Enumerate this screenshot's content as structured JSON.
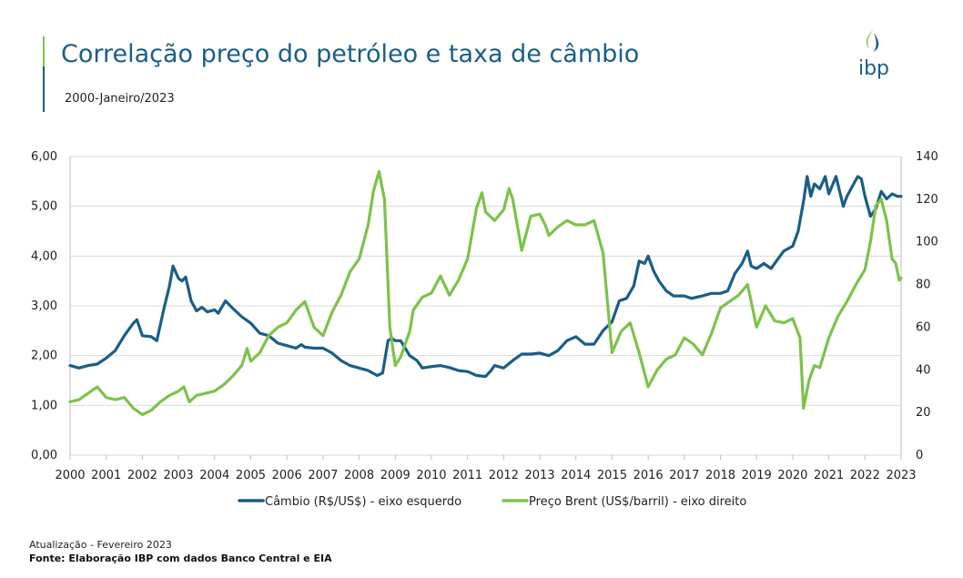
{
  "header": {
    "title": "Correlação preço do petróleo e taxa de câmbio",
    "subtitle": "2000-Janeiro/2023",
    "logo_text": "ibp"
  },
  "footer": {
    "update": "Atualização - Fevereiro 2023",
    "source": "Fonte: Elaboração IBP com dados Banco Central e EIA"
  },
  "colors": {
    "cambio": "#1a5e86",
    "brent": "#7dc24b",
    "title": "#1a5e86"
  },
  "chart_data": {
    "type": "line",
    "title": "Correlação preço do petróleo e taxa de câmbio",
    "subtitle": "2000-Janeiro/2023",
    "x_ticks": [
      "2000",
      "2001",
      "2002",
      "2003",
      "2004",
      "2005",
      "2006",
      "2007",
      "2008",
      "2009",
      "2010",
      "2011",
      "2012",
      "2013",
      "2014",
      "2015",
      "2016",
      "2017",
      "2018",
      "2019",
      "2020",
      "2021",
      "2022",
      "2023"
    ],
    "xlim": [
      2000,
      2023
    ],
    "y_left": {
      "lim": [
        0,
        6
      ],
      "ticks": [
        "0,00",
        "1,00",
        "2,00",
        "3,00",
        "4,00",
        "5,00",
        "6,00"
      ]
    },
    "y_right": {
      "lim": [
        0,
        140
      ],
      "ticks": [
        "0",
        "20",
        "40",
        "60",
        "80",
        "100",
        "120",
        "140"
      ]
    },
    "grid": "horizontal",
    "legend_position": "bottom",
    "series": [
      {
        "name": "Câmbio (R$/US$) - eixo esquerdo",
        "axis": "left",
        "points": [
          [
            2000.0,
            1.8
          ],
          [
            2000.25,
            1.75
          ],
          [
            2000.5,
            1.8
          ],
          [
            2000.75,
            1.83
          ],
          [
            2001.0,
            1.95
          ],
          [
            2001.25,
            2.1
          ],
          [
            2001.5,
            2.4
          ],
          [
            2001.75,
            2.65
          ],
          [
            2001.85,
            2.72
          ],
          [
            2002.0,
            2.4
          ],
          [
            2002.25,
            2.38
          ],
          [
            2002.4,
            2.3
          ],
          [
            2002.6,
            2.95
          ],
          [
            2002.75,
            3.4
          ],
          [
            2002.85,
            3.8
          ],
          [
            2003.0,
            3.55
          ],
          [
            2003.1,
            3.5
          ],
          [
            2003.2,
            3.58
          ],
          [
            2003.35,
            3.1
          ],
          [
            2003.5,
            2.9
          ],
          [
            2003.65,
            2.97
          ],
          [
            2003.8,
            2.88
          ],
          [
            2004.0,
            2.92
          ],
          [
            2004.1,
            2.85
          ],
          [
            2004.3,
            3.1
          ],
          [
            2004.5,
            2.95
          ],
          [
            2004.75,
            2.78
          ],
          [
            2005.0,
            2.65
          ],
          [
            2005.25,
            2.45
          ],
          [
            2005.5,
            2.4
          ],
          [
            2005.75,
            2.25
          ],
          [
            2006.0,
            2.2
          ],
          [
            2006.25,
            2.15
          ],
          [
            2006.4,
            2.22
          ],
          [
            2006.5,
            2.17
          ],
          [
            2006.75,
            2.15
          ],
          [
            2007.0,
            2.15
          ],
          [
            2007.25,
            2.05
          ],
          [
            2007.5,
            1.9
          ],
          [
            2007.75,
            1.8
          ],
          [
            2008.0,
            1.75
          ],
          [
            2008.25,
            1.7
          ],
          [
            2008.5,
            1.6
          ],
          [
            2008.65,
            1.65
          ],
          [
            2008.8,
            2.3
          ],
          [
            2008.9,
            2.35
          ],
          [
            2009.0,
            2.3
          ],
          [
            2009.15,
            2.3
          ],
          [
            2009.4,
            2.0
          ],
          [
            2009.6,
            1.9
          ],
          [
            2009.75,
            1.75
          ],
          [
            2010.0,
            1.78
          ],
          [
            2010.25,
            1.8
          ],
          [
            2010.5,
            1.76
          ],
          [
            2010.75,
            1.7
          ],
          [
            2011.0,
            1.68
          ],
          [
            2011.25,
            1.6
          ],
          [
            2011.5,
            1.58
          ],
          [
            2011.65,
            1.7
          ],
          [
            2011.75,
            1.8
          ],
          [
            2012.0,
            1.75
          ],
          [
            2012.25,
            1.9
          ],
          [
            2012.5,
            2.03
          ],
          [
            2012.75,
            2.03
          ],
          [
            2013.0,
            2.05
          ],
          [
            2013.25,
            2.0
          ],
          [
            2013.5,
            2.1
          ],
          [
            2013.75,
            2.3
          ],
          [
            2014.0,
            2.38
          ],
          [
            2014.25,
            2.23
          ],
          [
            2014.5,
            2.23
          ],
          [
            2014.75,
            2.5
          ],
          [
            2015.0,
            2.68
          ],
          [
            2015.2,
            3.1
          ],
          [
            2015.4,
            3.15
          ],
          [
            2015.6,
            3.4
          ],
          [
            2015.75,
            3.9
          ],
          [
            2015.9,
            3.85
          ],
          [
            2016.0,
            4.0
          ],
          [
            2016.15,
            3.7
          ],
          [
            2016.3,
            3.5
          ],
          [
            2016.5,
            3.3
          ],
          [
            2016.7,
            3.2
          ],
          [
            2017.0,
            3.2
          ],
          [
            2017.2,
            3.15
          ],
          [
            2017.5,
            3.2
          ],
          [
            2017.75,
            3.25
          ],
          [
            2018.0,
            3.25
          ],
          [
            2018.2,
            3.3
          ],
          [
            2018.4,
            3.65
          ],
          [
            2018.6,
            3.85
          ],
          [
            2018.75,
            4.1
          ],
          [
            2018.85,
            3.8
          ],
          [
            2019.0,
            3.75
          ],
          [
            2019.2,
            3.85
          ],
          [
            2019.4,
            3.75
          ],
          [
            2019.6,
            3.95
          ],
          [
            2019.75,
            4.1
          ],
          [
            2020.0,
            4.2
          ],
          [
            2020.15,
            4.5
          ],
          [
            2020.3,
            5.1
          ],
          [
            2020.4,
            5.6
          ],
          [
            2020.5,
            5.2
          ],
          [
            2020.6,
            5.45
          ],
          [
            2020.75,
            5.35
          ],
          [
            2020.9,
            5.6
          ],
          [
            2021.0,
            5.25
          ],
          [
            2021.2,
            5.6
          ],
          [
            2021.4,
            5.0
          ],
          [
            2021.5,
            5.2
          ],
          [
            2021.65,
            5.4
          ],
          [
            2021.8,
            5.6
          ],
          [
            2021.9,
            5.55
          ],
          [
            2022.0,
            5.2
          ],
          [
            2022.15,
            4.8
          ],
          [
            2022.3,
            4.95
          ],
          [
            2022.45,
            5.3
          ],
          [
            2022.6,
            5.15
          ],
          [
            2022.75,
            5.25
          ],
          [
            2022.9,
            5.2
          ],
          [
            2023.0,
            5.2
          ]
        ]
      },
      {
        "name": "Preço Brent (US$/barril) - eixo direito",
        "axis": "right",
        "points": [
          [
            2000.0,
            25
          ],
          [
            2000.25,
            26
          ],
          [
            2000.5,
            29
          ],
          [
            2000.75,
            32
          ],
          [
            2001.0,
            27
          ],
          [
            2001.25,
            26
          ],
          [
            2001.5,
            27
          ],
          [
            2001.75,
            22
          ],
          [
            2002.0,
            19
          ],
          [
            2002.25,
            21
          ],
          [
            2002.5,
            25
          ],
          [
            2002.75,
            28
          ],
          [
            2003.0,
            30
          ],
          [
            2003.15,
            32
          ],
          [
            2003.3,
            25
          ],
          [
            2003.5,
            28
          ],
          [
            2003.75,
            29
          ],
          [
            2004.0,
            30
          ],
          [
            2004.25,
            33
          ],
          [
            2004.5,
            37
          ],
          [
            2004.75,
            42
          ],
          [
            2004.9,
            50
          ],
          [
            2005.0,
            44
          ],
          [
            2005.25,
            48
          ],
          [
            2005.5,
            56
          ],
          [
            2005.75,
            60
          ],
          [
            2006.0,
            62
          ],
          [
            2006.25,
            68
          ],
          [
            2006.5,
            72
          ],
          [
            2006.75,
            60
          ],
          [
            2007.0,
            56
          ],
          [
            2007.25,
            67
          ],
          [
            2007.5,
            75
          ],
          [
            2007.75,
            86
          ],
          [
            2008.0,
            92
          ],
          [
            2008.25,
            108
          ],
          [
            2008.4,
            124
          ],
          [
            2008.55,
            133
          ],
          [
            2008.7,
            120
          ],
          [
            2008.85,
            60
          ],
          [
            2009.0,
            42
          ],
          [
            2009.15,
            46
          ],
          [
            2009.4,
            58
          ],
          [
            2009.5,
            68
          ],
          [
            2009.75,
            74
          ],
          [
            2010.0,
            76
          ],
          [
            2010.25,
            84
          ],
          [
            2010.5,
            75
          ],
          [
            2010.75,
            82
          ],
          [
            2011.0,
            92
          ],
          [
            2011.25,
            116
          ],
          [
            2011.4,
            123
          ],
          [
            2011.5,
            114
          ],
          [
            2011.75,
            110
          ],
          [
            2012.0,
            115
          ],
          [
            2012.15,
            125
          ],
          [
            2012.25,
            120
          ],
          [
            2012.5,
            96
          ],
          [
            2012.75,
            112
          ],
          [
            2013.0,
            113
          ],
          [
            2013.15,
            108
          ],
          [
            2013.25,
            103
          ],
          [
            2013.5,
            107
          ],
          [
            2013.75,
            110
          ],
          [
            2014.0,
            108
          ],
          [
            2014.25,
            108
          ],
          [
            2014.5,
            110
          ],
          [
            2014.75,
            95
          ],
          [
            2015.0,
            48
          ],
          [
            2015.25,
            58
          ],
          [
            2015.5,
            62
          ],
          [
            2015.75,
            48
          ],
          [
            2016.0,
            32
          ],
          [
            2016.25,
            40
          ],
          [
            2016.5,
            45
          ],
          [
            2016.75,
            47
          ],
          [
            2017.0,
            55
          ],
          [
            2017.25,
            52
          ],
          [
            2017.5,
            47
          ],
          [
            2017.75,
            57
          ],
          [
            2018.0,
            69
          ],
          [
            2018.25,
            72
          ],
          [
            2018.5,
            75
          ],
          [
            2018.75,
            80
          ],
          [
            2019.0,
            60
          ],
          [
            2019.25,
            70
          ],
          [
            2019.5,
            63
          ],
          [
            2019.75,
            62
          ],
          [
            2020.0,
            64
          ],
          [
            2020.2,
            55
          ],
          [
            2020.3,
            22
          ],
          [
            2020.45,
            35
          ],
          [
            2020.6,
            42
          ],
          [
            2020.75,
            41
          ],
          [
            2021.0,
            55
          ],
          [
            2021.25,
            65
          ],
          [
            2021.5,
            72
          ],
          [
            2021.75,
            80
          ],
          [
            2022.0,
            87
          ],
          [
            2022.15,
            100
          ],
          [
            2022.3,
            117
          ],
          [
            2022.45,
            120
          ],
          [
            2022.6,
            110
          ],
          [
            2022.75,
            92
          ],
          [
            2022.85,
            90
          ],
          [
            2022.95,
            82
          ],
          [
            2023.0,
            83
          ]
        ]
      }
    ]
  }
}
